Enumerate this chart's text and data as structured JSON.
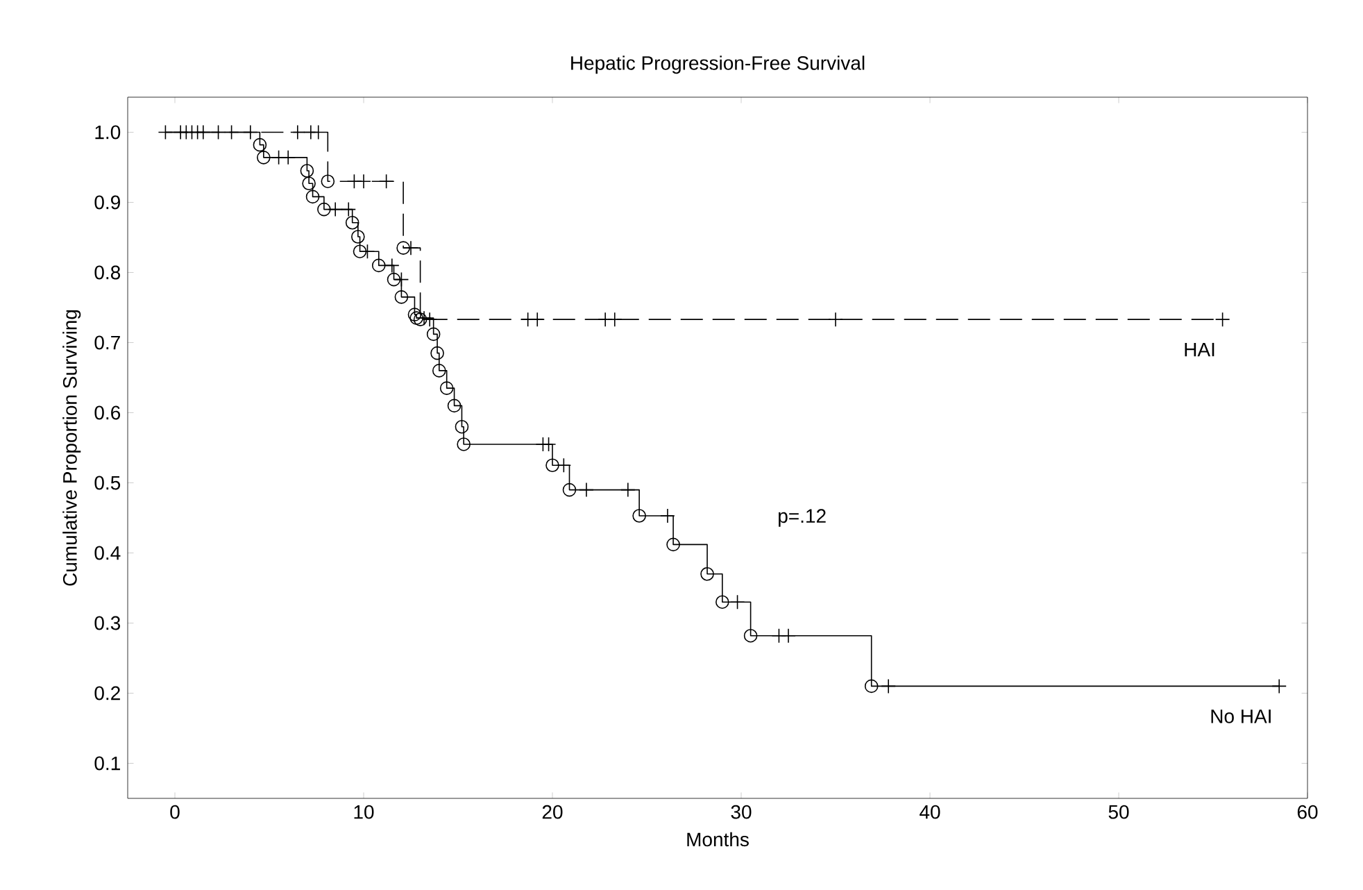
{
  "chart_data": {
    "type": "step",
    "title": "Hepatic Progression-Free Survival",
    "xlabel": "Months",
    "ylabel": "Cumulative Proportion Surviving",
    "annotations": [
      "p=.12"
    ],
    "xlim": [
      -2.5,
      60
    ],
    "xticks": [
      0,
      10,
      20,
      30,
      40,
      50,
      60
    ],
    "ylim": [
      0.05,
      1.05
    ],
    "yticks": [
      {
        "value": 0.1,
        "label": "0.1"
      },
      {
        "value": 0.2,
        "label": "0.2"
      },
      {
        "value": 0.3,
        "label": "0.3"
      },
      {
        "value": 0.4,
        "label": "0.4"
      },
      {
        "value": 0.5,
        "label": "0.5"
      },
      {
        "value": 0.6,
        "label": "0.6"
      },
      {
        "value": 0.7,
        "label": "0.7"
      },
      {
        "value": 0.8,
        "label": "0.8"
      },
      {
        "value": 0.9,
        "label": "0.9"
      },
      {
        "value": 1.0,
        "label": "1.0"
      }
    ],
    "grid": false,
    "series": [
      {
        "name": "No HAI",
        "color": "#000000",
        "line_style": "solid",
        "marker": "none",
        "x": [
          -0.5,
          4.5,
          4.7,
          7.0,
          7.1,
          7.3,
          7.9,
          9.4,
          9.7,
          9.8,
          10.8,
          11.6,
          12.0,
          12.7,
          12.8,
          13.7,
          13.9,
          14.0,
          14.4,
          14.8,
          15.2,
          15.3,
          20.0,
          20.9,
          24.6,
          26.4,
          28.2,
          29.0,
          30.5,
          36.9,
          58.5
        ],
        "values": [
          1.0,
          0.982,
          0.964,
          0.945,
          0.927,
          0.908,
          0.89,
          0.871,
          0.851,
          0.83,
          0.81,
          0.79,
          0.765,
          0.74,
          0.735,
          0.712,
          0.685,
          0.66,
          0.635,
          0.61,
          0.58,
          0.555,
          0.525,
          0.49,
          0.453,
          0.412,
          0.37,
          0.33,
          0.282,
          0.21,
          0.21
        ]
      },
      {
        "name": "HAI",
        "color": "#000000",
        "line_style": "dashed",
        "marker": "none",
        "x": [
          -0.5,
          8.1,
          12.1,
          13.0,
          55.5
        ],
        "values": [
          1.0,
          0.93,
          0.835,
          0.733,
          0.733
        ]
      },
      {
        "type": "scatter",
        "color": "#000000",
        "marker": "circle",
        "x": [
          4.5,
          4.7,
          7.0,
          7.1,
          7.3,
          7.9,
          9.4,
          9.7,
          9.8,
          10.8,
          11.6,
          12.0,
          12.7,
          12.8,
          13.7,
          13.9,
          14.0,
          14.4,
          14.8,
          15.2,
          15.3,
          20.0,
          20.9,
          24.6,
          26.4,
          28.2,
          29.0,
          30.5,
          36.9
        ],
        "values": [
          0.982,
          0.964,
          0.945,
          0.927,
          0.908,
          0.89,
          0.871,
          0.851,
          0.83,
          0.81,
          0.79,
          0.765,
          0.74,
          0.735,
          0.712,
          0.685,
          0.66,
          0.635,
          0.61,
          0.58,
          0.555,
          0.525,
          0.49,
          0.453,
          0.412,
          0.37,
          0.33,
          0.282,
          0.21
        ]
      },
      {
        "type": "scatter",
        "color": "#000000",
        "marker": "circle",
        "x": [
          8.1,
          12.1,
          13.0
        ],
        "values": [
          0.93,
          0.835,
          0.733
        ]
      },
      {
        "type": "scatter",
        "color": "#000000",
        "marker": "cross",
        "x": [
          -0.5,
          0.3,
          0.6,
          0.9,
          1.2,
          1.5,
          2.3,
          3.0,
          4.0,
          5.5,
          6.0,
          8.5,
          9.2,
          10.2,
          11.5,
          12.0,
          13.2,
          19.5,
          19.8,
          20.6,
          21.8,
          24.0,
          26.1,
          29.8,
          32.0,
          32.5,
          37.8,
          58.5
        ],
        "values": [
          1.0,
          1.0,
          1.0,
          1.0,
          1.0,
          1.0,
          1.0,
          1.0,
          1.0,
          0.964,
          0.964,
          0.89,
          0.89,
          0.83,
          0.81,
          0.79,
          0.735,
          0.555,
          0.555,
          0.525,
          0.49,
          0.49,
          0.453,
          0.33,
          0.282,
          0.282,
          0.21,
          0.21
        ]
      },
      {
        "type": "scatter",
        "color": "#000000",
        "marker": "cross",
        "x": [
          6.5,
          7.2,
          7.6,
          9.5,
          10.0,
          11.2,
          12.5,
          13.5,
          18.7,
          19.2,
          22.8,
          23.3,
          35.0,
          55.5
        ],
        "values": [
          1.0,
          1.0,
          1.0,
          0.93,
          0.93,
          0.93,
          0.835,
          0.733,
          0.733,
          0.733,
          0.733,
          0.733,
          0.733,
          0.733
        ]
      }
    ]
  }
}
